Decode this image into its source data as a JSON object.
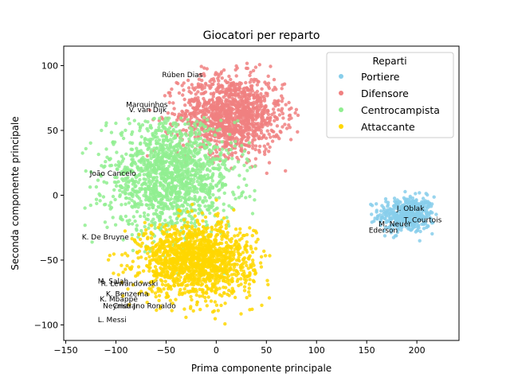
{
  "chart_data": {
    "type": "scatter",
    "title": "Giocatori per reparto",
    "xlabel": "Prima componente principale",
    "ylabel": "Seconda componente principale",
    "xlim": [
      -152,
      242
    ],
    "ylim": [
      -112,
      115
    ],
    "xticks": [
      -150,
      -100,
      -50,
      0,
      50,
      100,
      150,
      200
    ],
    "yticks": [
      -100,
      -50,
      0,
      50,
      100
    ],
    "grid": false,
    "legend": {
      "title": "Reparti",
      "placement": "top-right"
    },
    "series": [
      {
        "name": "Portiere",
        "color": "#87ceeb",
        "cluster": {
          "cx": 190,
          "cy": -15,
          "sx": 14,
          "sy": 7,
          "n": 450,
          "xmin": 135,
          "xmax": 220,
          "ymin": -38,
          "ymax": 3
        }
      },
      {
        "name": "Difensore",
        "color": "#f08080",
        "cluster": {
          "cx": 15,
          "cy": 62,
          "sx": 26,
          "sy": 15,
          "n": 1300,
          "xmin": -90,
          "xmax": 82,
          "ymin": 15,
          "ymax": 105
        }
      },
      {
        "name": "Centrocampista",
        "color": "#90ee90",
        "cluster": {
          "cx": -45,
          "cy": 15,
          "sx": 32,
          "sy": 22,
          "n": 1500,
          "xmin": -135,
          "xmax": 40,
          "ymin": -100,
          "ymax": 60
        }
      },
      {
        "name": "Attaccante",
        "color": "#ffd700",
        "cluster": {
          "cx": -20,
          "cy": -50,
          "sx": 28,
          "sy": 14,
          "n": 1500,
          "xmin": -120,
          "xmax": 62,
          "ymin": -100,
          "ymax": 5
        }
      }
    ],
    "annotations": [
      {
        "text": "Rúben Dias",
        "x": -54,
        "y": 91
      },
      {
        "text": "Marquinhos",
        "x": -90,
        "y": 68
      },
      {
        "text": "V. van Dijk",
        "x": -87,
        "y": 64
      },
      {
        "text": "João Cancelo",
        "x": -126,
        "y": 15
      },
      {
        "text": "J. Oblak",
        "x": 180,
        "y": -12
      },
      {
        "text": "T. Courtois",
        "x": 187,
        "y": -21
      },
      {
        "text": "M. Neuer",
        "x": 162,
        "y": -24
      },
      {
        "text": "Ederson",
        "x": 152,
        "y": -29
      },
      {
        "text": "K. De Bruyne",
        "x": -134,
        "y": -34
      },
      {
        "text": "M. Salah",
        "x": -118,
        "y": -68
      },
      {
        "text": "R. Lewandowski",
        "x": -115,
        "y": -70
      },
      {
        "text": "K. Benzema",
        "x": -110,
        "y": -78
      },
      {
        "text": "K. Mbappé",
        "x": -116,
        "y": -82
      },
      {
        "text": "Neymar Jr",
        "x": -113,
        "y": -87
      },
      {
        "text": "Cristiano Ronaldo",
        "x": -103,
        "y": -87
      },
      {
        "text": "L. Messi",
        "x": -118,
        "y": -98
      }
    ]
  }
}
